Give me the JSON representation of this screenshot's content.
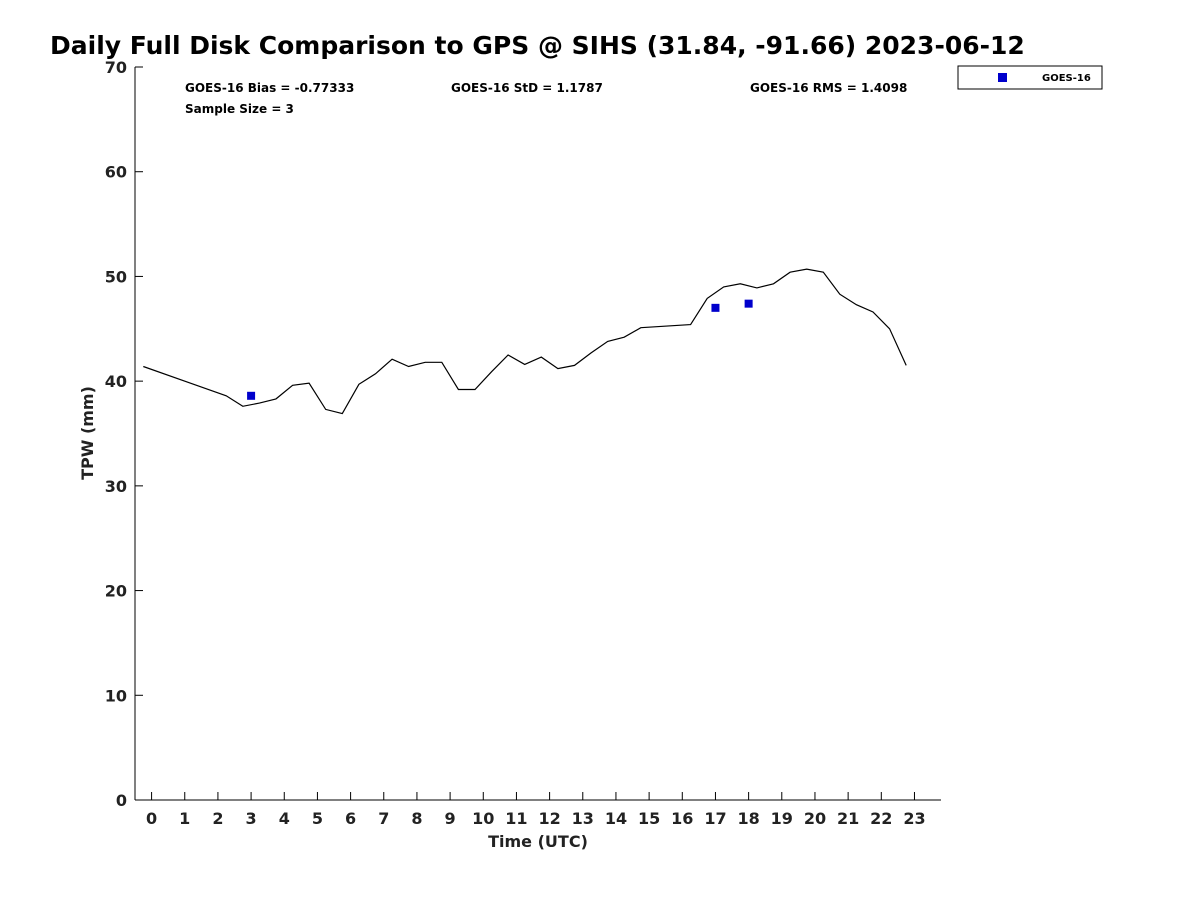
{
  "chart_data": {
    "type": "line",
    "title": "Daily Full Disk Comparison to GPS @ SIHS (31.84, -91.66) 2023-06-12",
    "xlabel": "Time (UTC)",
    "ylabel": "TPW (mm)",
    "xlim": [
      -0.5,
      23.8
    ],
    "ylim": [
      0,
      70
    ],
    "x_ticks": [
      0,
      1,
      2,
      3,
      4,
      5,
      6,
      7,
      8,
      9,
      10,
      11,
      12,
      13,
      14,
      15,
      16,
      17,
      18,
      19,
      20,
      21,
      22,
      23
    ],
    "y_ticks": [
      0,
      10,
      20,
      30,
      40,
      50,
      60,
      70
    ],
    "grid": false,
    "legend_position": "top-right, outside plot",
    "stats": {
      "bias": "GOES-16 Bias = -0.77333",
      "std": "GOES-16 StD = 1.1787",
      "rms": "GOES-16 RMS = 1.4098",
      "sample": "Sample Size = 3"
    },
    "series": [
      {
        "type": "line",
        "color": "#000000",
        "x": [
          -0.25,
          2.25,
          2.75,
          3.25,
          3.75,
          4.25,
          4.75,
          5.25,
          5.75,
          6.25,
          6.75,
          7.25,
          7.75,
          8.25,
          8.75,
          9.25,
          9.75,
          10.25,
          10.75,
          11.25,
          11.75,
          12.25,
          12.75,
          13.25,
          13.75,
          14.25,
          14.75,
          16.25,
          16.75,
          17.25,
          17.75,
          18.25,
          18.75,
          19.25,
          19.75,
          20.25,
          20.75,
          21.25,
          21.75,
          22.25,
          22.75
        ],
        "values": [
          41.4,
          38.6,
          37.6,
          37.9,
          38.3,
          39.6,
          39.8,
          37.3,
          36.9,
          39.7,
          40.7,
          42.1,
          41.4,
          41.8,
          41.8,
          39.2,
          39.2,
          40.9,
          42.5,
          41.6,
          42.3,
          41.2,
          41.5,
          42.7,
          43.8,
          44.2,
          45.1,
          45.4,
          47.9,
          49.0,
          49.3,
          48.9,
          49.3,
          50.4,
          50.7,
          50.4,
          48.3,
          47.3,
          46.6,
          45.0,
          41.5
        ]
      },
      {
        "name": "GOES-16",
        "type": "scatter",
        "color": "#0000cc",
        "x": [
          3.0,
          17.0,
          18.0
        ],
        "values": [
          38.6,
          47.0,
          47.4
        ]
      }
    ]
  }
}
